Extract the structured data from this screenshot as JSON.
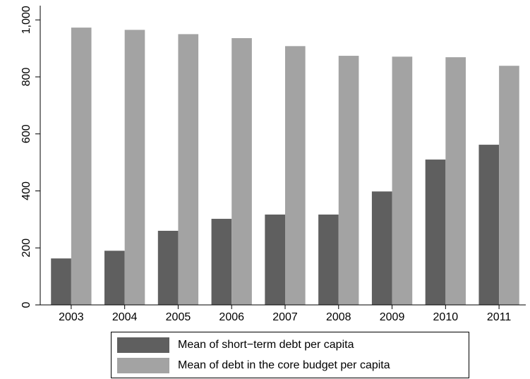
{
  "chart_data": {
    "type": "bar",
    "categories": [
      "2003",
      "2004",
      "2005",
      "2006",
      "2007",
      "2008",
      "2009",
      "2010",
      "2011"
    ],
    "series": [
      {
        "name": "Mean of short−term debt per capita",
        "color": "#5f5f5f",
        "values": [
          163,
          190,
          260,
          302,
          317,
          317,
          398,
          510,
          562
        ]
      },
      {
        "name": "Mean of debt in the core budget per capita",
        "color": "#a3a3a3",
        "values": [
          973,
          965,
          950,
          936,
          908,
          874,
          871,
          869,
          839
        ]
      }
    ],
    "ylim": [
      0,
      1050
    ],
    "yticks": [
      0,
      200,
      400,
      600,
      800,
      {
        "value": 1000,
        "label": "1,000"
      }
    ],
    "legend": "bottom"
  }
}
